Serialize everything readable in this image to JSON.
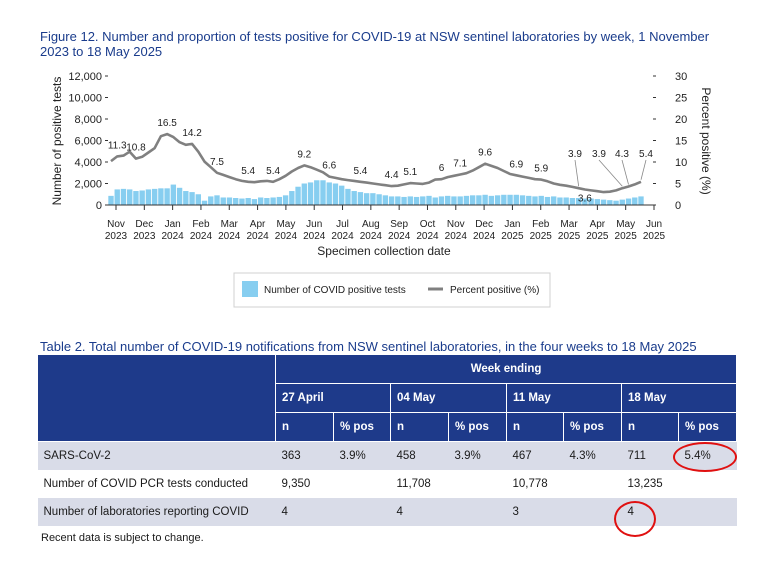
{
  "figure": {
    "title": "Figure 12. Number and proportion of tests positive for COVID-19 at NSW sentinel laboratories by week, 1 November 2023 to 18 May 2025"
  },
  "chart_data": {
    "type": "bar+line",
    "title": "Figure 12. Number and proportion of tests positive for COVID-19 at NSW sentinel laboratories by week, 1 November 2023 to 18 May 2025",
    "xlabel": "Specimen collection date",
    "ylabel_left": "Number of positive tests",
    "ylabel_right": "Percent positive (%)",
    "ylim_left": [
      0,
      12000
    ],
    "ylim_right": [
      0,
      30
    ],
    "yticks_left": [
      "0",
      "2,000",
      "4,000",
      "6,000",
      "8,000",
      "10,000",
      "12,000"
    ],
    "yticks_right": [
      "0",
      "5",
      "10",
      "15",
      "20",
      "25",
      "30"
    ],
    "x_ticks": [
      {
        "month": "Nov",
        "year": "2023"
      },
      {
        "month": "Dec",
        "year": "2023"
      },
      {
        "month": "Jan",
        "year": "2024"
      },
      {
        "month": "Feb",
        "year": "2024"
      },
      {
        "month": "Mar",
        "year": "2024"
      },
      {
        "month": "Apr",
        "year": "2024"
      },
      {
        "month": "May",
        "year": "2024"
      },
      {
        "month": "Jun",
        "year": "2024"
      },
      {
        "month": "Jul",
        "year": "2024"
      },
      {
        "month": "Aug",
        "year": "2024"
      },
      {
        "month": "Sep",
        "year": "2024"
      },
      {
        "month": "Oct",
        "year": "2024"
      },
      {
        "month": "Nov",
        "year": "2024"
      },
      {
        "month": "Dec",
        "year": "2024"
      },
      {
        "month": "Jan",
        "year": "2025"
      },
      {
        "month": "Feb",
        "year": "2025"
      },
      {
        "month": "Mar",
        "year": "2025"
      },
      {
        "month": "Apr",
        "year": "2025"
      },
      {
        "month": "May",
        "year": "2025"
      },
      {
        "month": "Jun",
        "year": "2025"
      }
    ],
    "legend": [
      "Number of COVID positive tests",
      "Percent positive (%)"
    ],
    "bar_color": "#87cef0",
    "line_color": "#808080",
    "series": [
      {
        "name": "Number of COVID positive tests",
        "values": [
          850,
          1450,
          1500,
          1450,
          1300,
          1350,
          1450,
          1500,
          1550,
          1550,
          1900,
          1600,
          1300,
          1200,
          1000,
          400,
          800,
          900,
          700,
          700,
          650,
          600,
          650,
          550,
          700,
          650,
          700,
          750,
          900,
          1300,
          1700,
          2000,
          2100,
          2300,
          2300,
          2100,
          2000,
          1800,
          1500,
          1300,
          1200,
          1100,
          1100,
          1000,
          900,
          800,
          800,
          750,
          800,
          750,
          800,
          850,
          700,
          800,
          850,
          800,
          800,
          850,
          900,
          900,
          950,
          850,
          900,
          950,
          950,
          950,
          900,
          850,
          800,
          850,
          750,
          800,
          700,
          700,
          650,
          650,
          600,
          600,
          550,
          500,
          450,
          400,
          500,
          600,
          700,
          800
        ]
      },
      {
        "name": "Percent positive (%)",
        "values": [
          10.2,
          11.3,
          11.5,
          12.4,
          10.8,
          11.2,
          12.2,
          13.2,
          16.0,
          16.5,
          15.8,
          14.6,
          14.0,
          14.2,
          12.4,
          10.1,
          8.8,
          7.5,
          7.0,
          6.5,
          6.0,
          5.6,
          5.4,
          5.3,
          5.5,
          5.6,
          5.4,
          6.0,
          6.8,
          7.8,
          8.6,
          9.2,
          8.8,
          8.2,
          7.6,
          6.6,
          6.3,
          6.0,
          5.8,
          5.6,
          5.4,
          5.2,
          5.0,
          4.8,
          4.6,
          4.4,
          4.5,
          4.8,
          5.1,
          5.0,
          4.9,
          5.2,
          5.9,
          6.0,
          6.5,
          6.8,
          7.1,
          7.4,
          8.0,
          8.8,
          9.6,
          9.1,
          8.6,
          7.9,
          7.2,
          6.9,
          6.6,
          6.3,
          6.0,
          5.9,
          5.5,
          5.0,
          4.7,
          4.5,
          4.2,
          3.9,
          3.6,
          3.4,
          3.2,
          3.0,
          3.1,
          3.4,
          3.9,
          4.3,
          4.8,
          5.4
        ]
      }
    ],
    "annotations": [
      {
        "label": "11.3",
        "index": 1
      },
      {
        "label": "10.8",
        "index": 4
      },
      {
        "label": "16.5",
        "index": 9
      },
      {
        "label": "14.2",
        "index": 13
      },
      {
        "label": "7.5",
        "index": 17
      },
      {
        "label": "5.4",
        "index": 22
      },
      {
        "label": "5.4",
        "index": 26
      },
      {
        "label": "9.2",
        "index": 31
      },
      {
        "label": "6.6",
        "index": 35
      },
      {
        "label": "5.4",
        "index": 40
      },
      {
        "label": "4.4",
        "index": 45
      },
      {
        "label": "5.1",
        "index": 48
      },
      {
        "label": "6",
        "index": 53
      },
      {
        "label": "7.1",
        "index": 56
      },
      {
        "label": "9.6",
        "index": 60
      },
      {
        "label": "6.9",
        "index": 65
      },
      {
        "label": "5.9",
        "index": 69
      },
      {
        "label": "3.9",
        "index": 75
      },
      {
        "label": "3.6",
        "index": 76
      },
      {
        "label": "3.9",
        "index": 82
      },
      {
        "label": "4.3",
        "index": 83
      },
      {
        "label": "5.4",
        "index": 85
      }
    ]
  },
  "table": {
    "title": "Table 2. Total number of COVID-19 notifications from NSW sentinel laboratories, in the four weeks to 18 May 2025",
    "week_ending_label": "Week ending",
    "weeks": [
      "27 April",
      "04 May",
      "11 May",
      "18 May"
    ],
    "n_label": "n",
    "pos_label": "% pos",
    "rows": [
      {
        "label": "SARS-CoV-2",
        "values": [
          "363",
          "3.9%",
          "458",
          "3.9%",
          "467",
          "4.3%",
          "711",
          "5.4%"
        ]
      },
      {
        "label": "Number of COVID PCR tests conducted",
        "values": [
          "9,350",
          "11,708",
          "10,778",
          "13,235"
        ]
      },
      {
        "label": "Number of laboratories reporting COVID",
        "values": [
          "4",
          "4",
          "3",
          "4"
        ]
      }
    ],
    "note": "Recent data is subject to change.",
    "highlight_color": "#e01010"
  }
}
